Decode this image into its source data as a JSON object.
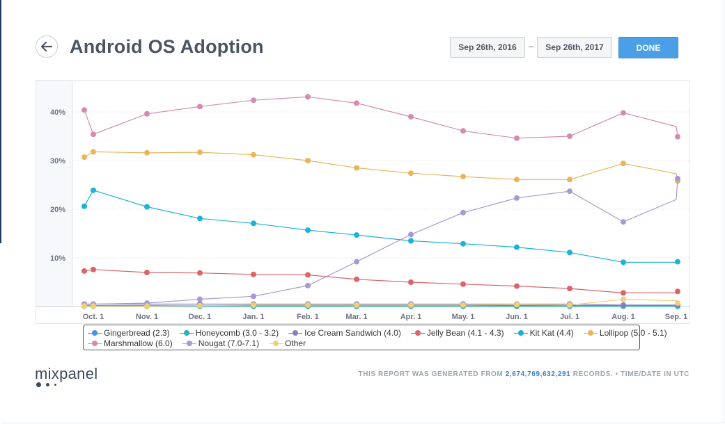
{
  "header": {
    "title": "Android OS Adoption",
    "date_start": "Sep 26th, 2016",
    "date_separator": "–",
    "date_end": "Sep 26th, 2017",
    "done_label": "DONE"
  },
  "chart_data": {
    "type": "line",
    "x": [
      "Sep 26",
      "Oct. 1",
      "Nov. 1",
      "Dec. 1",
      "Jan. 1",
      "Feb. 1",
      "Mar. 1",
      "Apr. 1",
      "May. 1",
      "Jun. 1",
      "Jul. 1",
      "Aug. 1",
      "Sep. 1",
      "Sep 26"
    ],
    "x_tick_labels": [
      "Oct. 1",
      "Nov. 1",
      "Dec. 1",
      "Jan. 1",
      "Feb. 1",
      "Mar. 1",
      "Apr. 1",
      "May. 1",
      "Jun. 1",
      "Jul. 1",
      "Aug. 1",
      "Sep. 1"
    ],
    "y_tick_labels": [
      "10%",
      "20%",
      "30%",
      "40%"
    ],
    "ylim": [
      0,
      45
    ],
    "grid": true,
    "series": [
      {
        "name": "Gingerbread (2.3)",
        "color": "#4a90e2",
        "values": [
          0.2,
          0.2,
          0.2,
          0.2,
          0.2,
          0.2,
          0.2,
          0.2,
          0.2,
          0.2,
          0.2,
          0.2,
          0.2,
          0.2
        ]
      },
      {
        "name": "Honeycomb (3.0 - 3.2)",
        "color": "#2bb3a8",
        "values": [
          0.05,
          0.05,
          0.05,
          0.05,
          0.05,
          0.05,
          0.05,
          0.05,
          0.05,
          0.05,
          0.05,
          0.05,
          0.05,
          0.05
        ]
      },
      {
        "name": "Ice Cream Sandwich (4.0)",
        "color": "#8e7cc3",
        "values": [
          0.5,
          0.5,
          0.5,
          0.5,
          0.5,
          0.5,
          0.5,
          0.5,
          0.5,
          0.5,
          0.5,
          0.3,
          0.3,
          0.3
        ]
      },
      {
        "name": "Jelly Bean (4.1 - 4.3)",
        "color": "#d9646a",
        "values": [
          7.3,
          7.6,
          7.0,
          6.9,
          6.6,
          6.5,
          5.6,
          5.0,
          4.6,
          4.2,
          3.7,
          2.8,
          2.8,
          3.1
        ]
      },
      {
        "name": "Kit Kat (4.4)",
        "color": "#1ab3d6",
        "values": [
          20.6,
          23.9,
          20.5,
          18.1,
          17.1,
          15.7,
          14.7,
          13.5,
          12.9,
          12.2,
          11.1,
          9.1,
          9.1,
          9.2
        ]
      },
      {
        "name": "Lollipop (5.0 - 5.1)",
        "color": "#e9b55a",
        "values": [
          30.7,
          31.8,
          31.6,
          31.7,
          31.2,
          30.0,
          28.5,
          27.4,
          26.7,
          26.1,
          26.1,
          29.4,
          27.3,
          25.8
        ]
      },
      {
        "name": "Marshmallow (6.0)",
        "color": "#d38bb0",
        "values": [
          40.4,
          35.4,
          39.6,
          41.1,
          42.4,
          43.1,
          41.8,
          39.0,
          36.1,
          34.6,
          35.0,
          39.8,
          37.0,
          34.9
        ]
      },
      {
        "name": "Nougat (7.0-7.1)",
        "color": "#a79ad4",
        "values": [
          0.4,
          0.5,
          0.7,
          1.5,
          2.1,
          4.3,
          9.2,
          14.8,
          19.3,
          22.3,
          23.7,
          17.4,
          22.0,
          26.3
        ]
      },
      {
        "name": "Other",
        "color": "#f2cf75",
        "values": [
          0.1,
          0.1,
          0.1,
          0.2,
          0.3,
          0.3,
          0.3,
          0.3,
          0.3,
          0.4,
          0.3,
          1.5,
          1.2,
          0.7
        ]
      }
    ],
    "point_on_first": [
      true,
      true,
      true,
      true,
      true,
      true,
      true,
      true,
      true,
      true,
      true,
      true,
      false,
      true
    ]
  },
  "footer": {
    "logo_text": "mixpanel",
    "note_prefix": "THIS REPORT WAS GENERATED FROM ",
    "note_count": "2,674,769,632,291",
    "note_suffix": " RECORDS. • TIME/DATE IN UTC"
  }
}
